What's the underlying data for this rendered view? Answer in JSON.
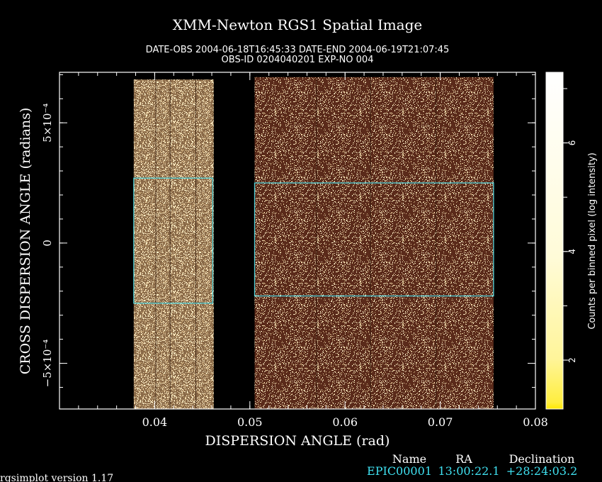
{
  "chart_data": {
    "type": "heatmap",
    "title": "XMM-Newton  RGS1 Spatial Image",
    "subtitle_line1": "DATE-OBS 2004-06-18T16:45:33   DATE-END 2004-06-19T21:07:45",
    "subtitle_line2": "OBS-ID 0204040201 EXP-NO 004",
    "xlabel": "DISPERSION ANGLE (rad)",
    "ylabel": "CROSS DISPERSION ANGLE (radians)",
    "xlim": [
      0.03,
      0.08
    ],
    "ylim": [
      -0.00069,
      0.00071
    ],
    "x_ticks": [
      {
        "value": 0.04,
        "label": "0.04"
      },
      {
        "value": 0.05,
        "label": "0.05"
      },
      {
        "value": 0.06,
        "label": "0.06"
      },
      {
        "value": 0.07,
        "label": "0.07"
      },
      {
        "value": 0.08,
        "label": "0.08"
      }
    ],
    "y_ticks": [
      {
        "value": 0.0005,
        "label": "5×10⁻⁴"
      },
      {
        "value": 0,
        "label": "0"
      },
      {
        "value": -0.0005,
        "label": "−5×10⁻⁴"
      }
    ],
    "colorbar": {
      "label": "Counts per binned pixel (log intensity)",
      "range": [
        1.1,
        7.3
      ],
      "ticks": [
        {
          "value": 2,
          "label": "2"
        },
        {
          "value": 4,
          "label": "4"
        },
        {
          "value": 6,
          "label": "6"
        }
      ]
    },
    "detector_regions": [
      {
        "name": "ccd-left",
        "x0": 0.0378,
        "x1": 0.0462,
        "y0": -0.00069,
        "y1": 0.00068,
        "density": "high"
      },
      {
        "name": "ccd-right",
        "x0": 0.0505,
        "x1": 0.0756,
        "y0": -0.00069,
        "y1": 0.00069,
        "density": "medium"
      }
    ],
    "extraction_regions": [
      {
        "name": "source-region-left",
        "x0": 0.0378,
        "x1": 0.0461,
        "y0": -0.00025,
        "y1": 0.00027
      },
      {
        "name": "source-region-right",
        "x0": 0.0505,
        "x1": 0.0756,
        "y0": -0.00022,
        "y1": 0.00025
      }
    ],
    "colors": {
      "background": "#000000",
      "high": "#fff0c8",
      "medium": "#c8a878",
      "low": "#5a2a1a",
      "region_outline": "#4fd0d8"
    }
  },
  "source_table": {
    "headers": {
      "name": "Name",
      "ra": "RA",
      "dec": "Declination"
    },
    "row": {
      "name": "EPIC00001",
      "ra": "13:00:22.1",
      "dec": "+28:24:03.2"
    }
  },
  "footer": {
    "version": "rgsimplot version 1.17"
  }
}
